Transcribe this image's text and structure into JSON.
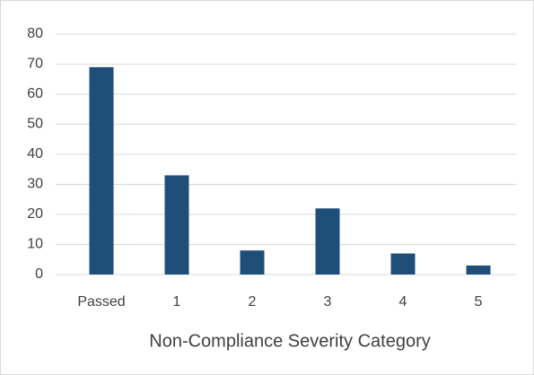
{
  "chart_data": {
    "type": "bar",
    "x_label": "Non-Compliance Severity Category",
    "categories": [
      "Passed",
      "1",
      "2",
      "3",
      "4",
      "5"
    ],
    "values": [
      69,
      33,
      8,
      22,
      7,
      3
    ],
    "color": "#1f4e79",
    "ylim": [
      0,
      80
    ],
    "yticks": [
      0,
      10,
      20,
      30,
      40,
      50,
      60,
      70,
      80
    ],
    "grid": true
  }
}
